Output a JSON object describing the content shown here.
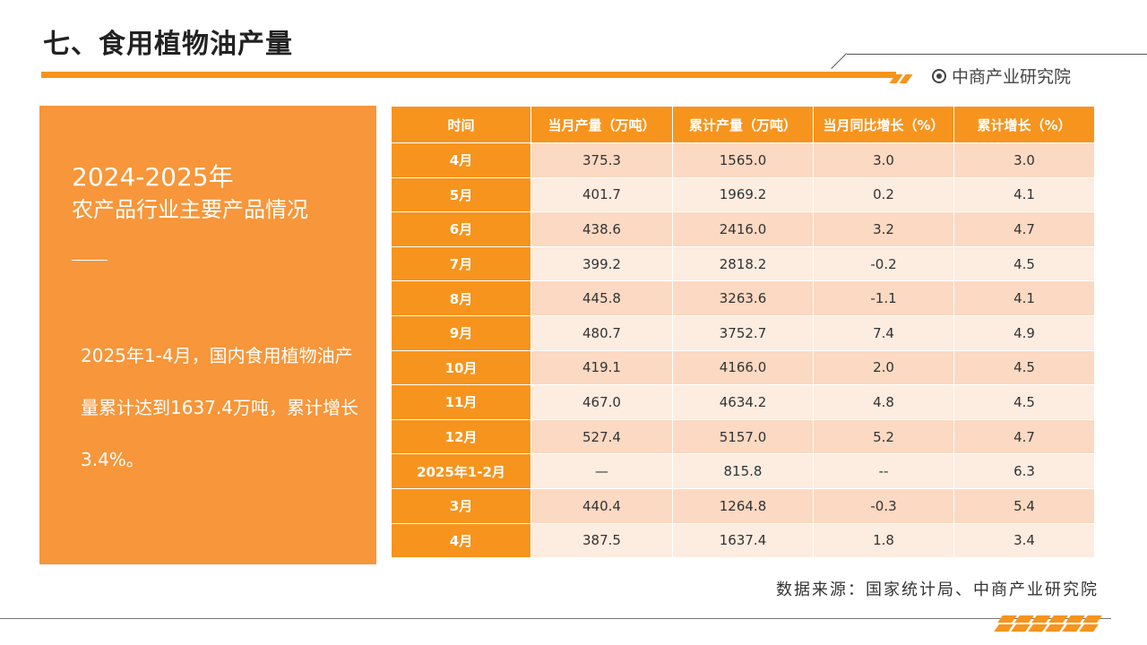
{
  "header": {
    "title": "七、食用植物油产量",
    "brand": "中商产业研究院"
  },
  "left_panel": {
    "year": "2024-2025年",
    "subtitle": "农产品行业主要产品情况",
    "summary": "2025年1-4月，国内食用植物油产量累计达到1637.4万吨，累计增长3.4%。"
  },
  "table": {
    "columns": [
      "时间",
      "当月产量（万吨）",
      "累计产量（万吨）",
      "当月同比增长（%）",
      "累计增长（%）"
    ],
    "rows": [
      [
        "4月",
        "375.3",
        "1565.0",
        "3.0",
        "3.0"
      ],
      [
        "5月",
        "401.7",
        "1969.2",
        "0.2",
        "4.1"
      ],
      [
        "6月",
        "438.6",
        "2416.0",
        "3.2",
        "4.7"
      ],
      [
        "7月",
        "399.2",
        "2818.2",
        "-0.2",
        "4.5"
      ],
      [
        "8月",
        "445.8",
        "3263.6",
        "-1.1",
        "4.1"
      ],
      [
        "9月",
        "480.7",
        "3752.7",
        "7.4",
        "4.9"
      ],
      [
        "10月",
        "419.1",
        "4166.0",
        "2.0",
        "4.5"
      ],
      [
        "11月",
        "467.0",
        "4634.2",
        "4.8",
        "4.5"
      ],
      [
        "12月",
        "527.4",
        "5157.0",
        "5.2",
        "4.7"
      ],
      [
        "2025年1-2月",
        "—",
        "815.8",
        "--",
        "6.3"
      ],
      [
        "3月",
        "440.4",
        "1264.8",
        "-0.3",
        "5.4"
      ],
      [
        "4月",
        "387.5",
        "1637.4",
        "1.8",
        "3.4"
      ]
    ]
  },
  "footer": {
    "source": "数据来源：国家统计局、中商产业研究院"
  },
  "colors": {
    "accent": "#f7941d",
    "panel": "#f7963a",
    "row_dark": "#fbd9c2",
    "row_light": "#fdece0"
  }
}
